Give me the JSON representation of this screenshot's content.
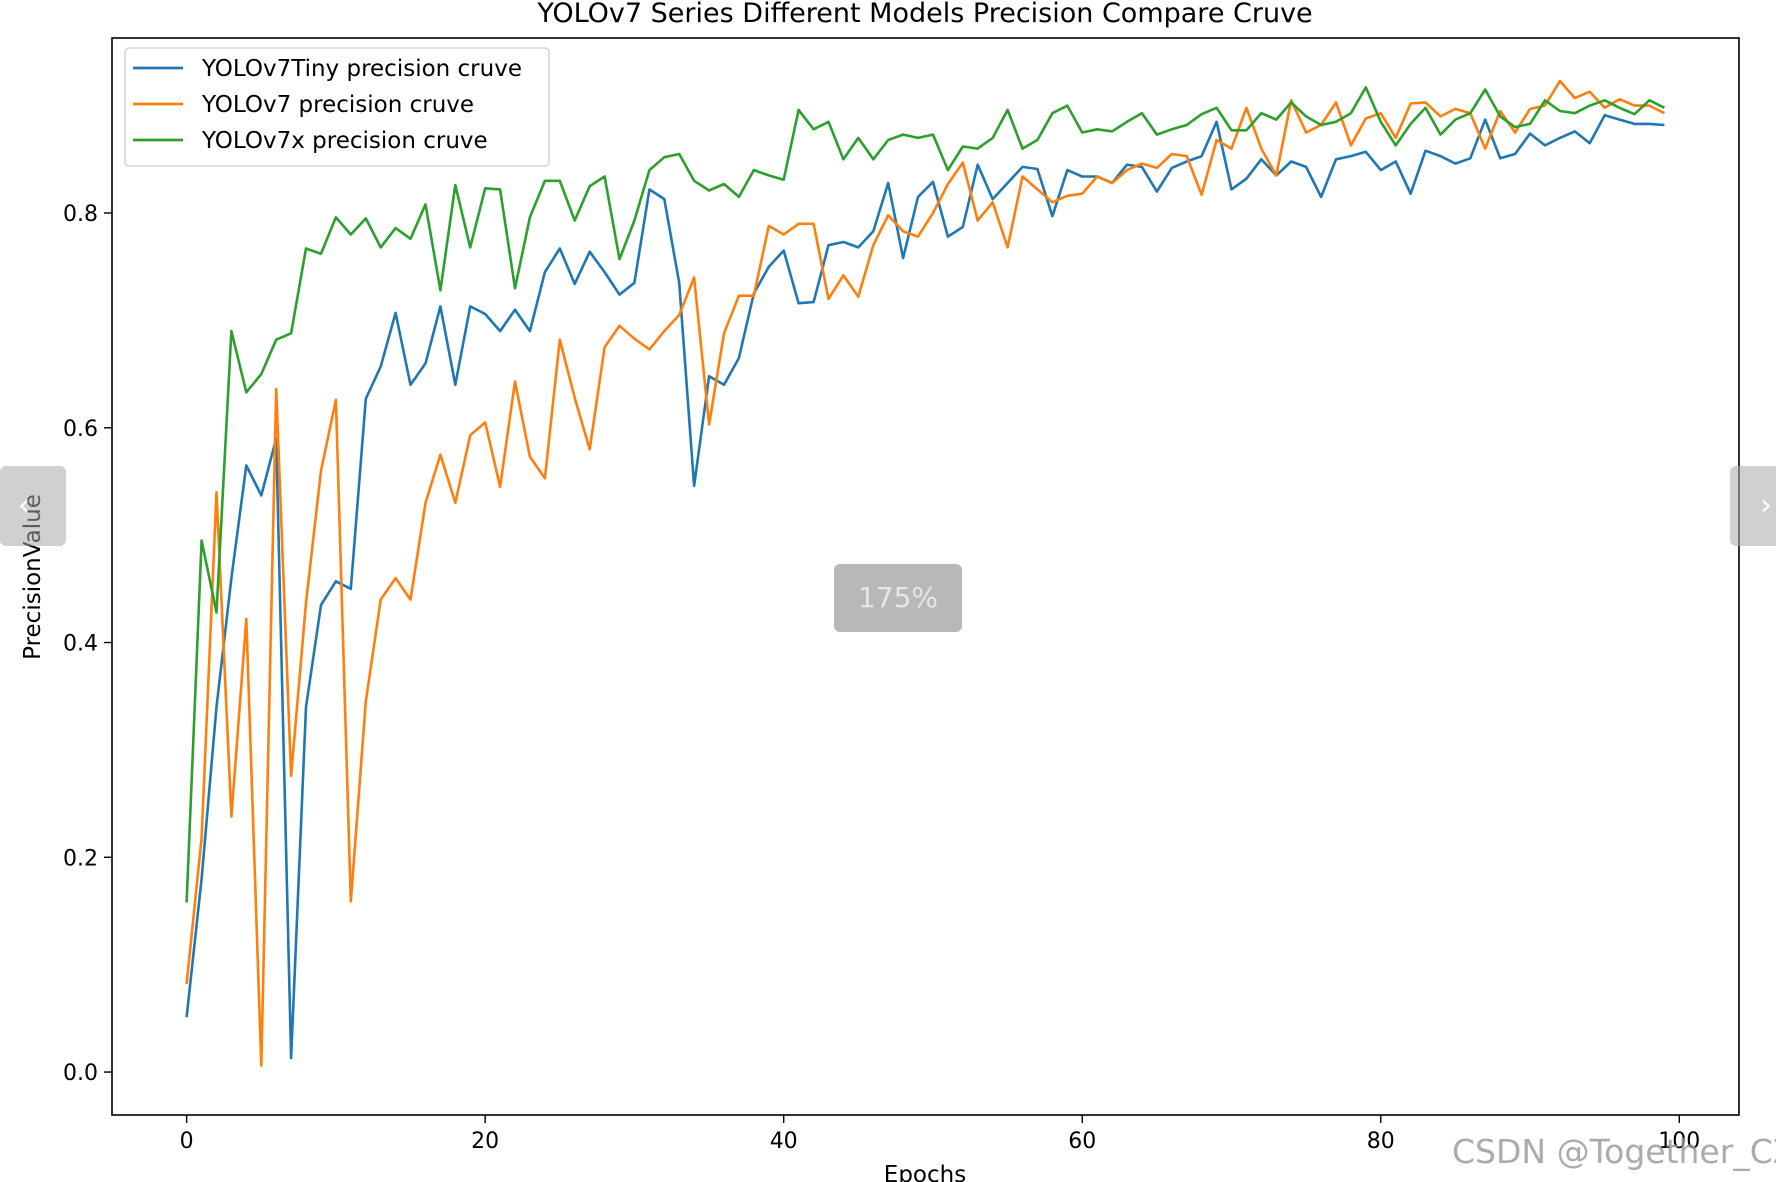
{
  "chart_data": {
    "type": "line",
    "title": "YOLOv7 Series Different Models Precision Compare Cruve",
    "xlabel": "Epochs",
    "ylabel": "PrecisionValue",
    "xlim": [
      -5,
      104
    ],
    "ylim": [
      -0.04,
      0.963
    ],
    "x_ticks": [
      0,
      20,
      40,
      60,
      80,
      100
    ],
    "y_ticks": [
      0.0,
      0.2,
      0.4,
      0.6,
      0.8
    ],
    "x_tick_labels": [
      "0",
      "20",
      "40",
      "60",
      "80",
      "100"
    ],
    "y_tick_labels": [
      "0.0",
      "0.2",
      "0.4",
      "0.6",
      "0.8"
    ],
    "grid": false,
    "legend_position": "top-left",
    "x": [
      0,
      1,
      2,
      3,
      4,
      5,
      6,
      7,
      8,
      9,
      10,
      11,
      12,
      13,
      14,
      15,
      16,
      17,
      18,
      19,
      20,
      21,
      22,
      23,
      24,
      25,
      26,
      27,
      28,
      29,
      30,
      31,
      32,
      33,
      34,
      35,
      36,
      37,
      38,
      39,
      40,
      41,
      42,
      43,
      44,
      45,
      46,
      47,
      48,
      49,
      50,
      51,
      52,
      53,
      54,
      55,
      56,
      57,
      58,
      59,
      60,
      61,
      62,
      63,
      64,
      65,
      66,
      67,
      68,
      69,
      70,
      71,
      72,
      73,
      74,
      75,
      76,
      77,
      78,
      79,
      80,
      81,
      82,
      83,
      84,
      85,
      86,
      87,
      88,
      89,
      90,
      91,
      92,
      93,
      94,
      95,
      96,
      97,
      98,
      99
    ],
    "series": [
      {
        "name": "YOLOv7Tiny precision cruve",
        "color": "#1f77b4",
        "values": [
          0.051,
          0.18,
          0.34,
          0.46,
          0.565,
          0.537,
          0.59,
          0.013,
          0.34,
          0.435,
          0.457,
          0.45,
          0.627,
          0.657,
          0.707,
          0.64,
          0.66,
          0.713,
          0.64,
          0.713,
          0.706,
          0.69,
          0.71,
          0.69,
          0.745,
          0.767,
          0.734,
          0.764,
          0.745,
          0.724,
          0.735,
          0.822,
          0.813,
          0.735,
          0.546,
          0.648,
          0.64,
          0.665,
          0.725,
          0.75,
          0.765,
          0.716,
          0.717,
          0.77,
          0.773,
          0.768,
          0.783,
          0.828,
          0.758,
          0.815,
          0.829,
          0.778,
          0.787,
          0.845,
          0.813,
          0.828,
          0.843,
          0.841,
          0.797,
          0.84,
          0.834,
          0.834,
          0.828,
          0.845,
          0.843,
          0.82,
          0.842,
          0.848,
          0.853,
          0.885,
          0.822,
          0.832,
          0.85,
          0.835,
          0.848,
          0.843,
          0.815,
          0.85,
          0.853,
          0.857,
          0.84,
          0.848,
          0.818,
          0.858,
          0.853,
          0.846,
          0.851,
          0.887,
          0.851,
          0.855,
          0.874,
          0.863,
          0.87,
          0.876,
          0.865,
          0.891,
          0.887,
          0.883,
          0.883,
          0.882
        ]
      },
      {
        "name": "YOLOv7 precision cruve",
        "color": "#ff7f0e",
        "values": [
          0.082,
          0.218,
          0.54,
          0.238,
          0.422,
          0.006,
          0.636,
          0.276,
          0.437,
          0.56,
          0.626,
          0.159,
          0.345,
          0.44,
          0.46,
          0.44,
          0.53,
          0.575,
          0.53,
          0.593,
          0.605,
          0.545,
          0.643,
          0.573,
          0.553,
          0.682,
          0.628,
          0.58,
          0.675,
          0.695,
          0.683,
          0.673,
          0.69,
          0.705,
          0.74,
          0.603,
          0.688,
          0.723,
          0.723,
          0.788,
          0.78,
          0.79,
          0.79,
          0.72,
          0.742,
          0.722,
          0.77,
          0.798,
          0.783,
          0.778,
          0.8,
          0.827,
          0.847,
          0.793,
          0.81,
          0.768,
          0.834,
          0.822,
          0.81,
          0.816,
          0.818,
          0.834,
          0.828,
          0.84,
          0.846,
          0.842,
          0.855,
          0.853,
          0.817,
          0.868,
          0.86,
          0.898,
          0.86,
          0.835,
          0.905,
          0.875,
          0.882,
          0.903,
          0.863,
          0.888,
          0.893,
          0.87,
          0.902,
          0.903,
          0.89,
          0.897,
          0.893,
          0.86,
          0.895,
          0.875,
          0.897,
          0.9,
          0.923,
          0.907,
          0.913,
          0.898,
          0.906,
          0.9,
          0.9,
          0.893
        ]
      },
      {
        "name": "YOLOv7x precision cruve",
        "color": "#2ca02c",
        "values": [
          0.158,
          0.495,
          0.428,
          0.69,
          0.633,
          0.65,
          0.682,
          0.688,
          0.767,
          0.762,
          0.796,
          0.78,
          0.795,
          0.768,
          0.786,
          0.776,
          0.808,
          0.728,
          0.826,
          0.768,
          0.823,
          0.822,
          0.73,
          0.796,
          0.83,
          0.83,
          0.793,
          0.825,
          0.834,
          0.757,
          0.793,
          0.84,
          0.852,
          0.855,
          0.83,
          0.821,
          0.827,
          0.815,
          0.84,
          0.835,
          0.831,
          0.896,
          0.878,
          0.885,
          0.85,
          0.87,
          0.85,
          0.868,
          0.873,
          0.87,
          0.873,
          0.84,
          0.862,
          0.86,
          0.87,
          0.896,
          0.86,
          0.868,
          0.893,
          0.9,
          0.875,
          0.878,
          0.876,
          0.885,
          0.893,
          0.873,
          0.878,
          0.882,
          0.892,
          0.898,
          0.877,
          0.877,
          0.893,
          0.887,
          0.903,
          0.89,
          0.882,
          0.885,
          0.893,
          0.917,
          0.885,
          0.863,
          0.883,
          0.898,
          0.873,
          0.887,
          0.893,
          0.915,
          0.89,
          0.88,
          0.883,
          0.905,
          0.895,
          0.893,
          0.9,
          0.905,
          0.898,
          0.892,
          0.905,
          0.898
        ]
      }
    ]
  },
  "viewer": {
    "prev_icon": "chevron-left-icon",
    "next_icon": "chevron-right-icon",
    "zoom_label": "175%"
  },
  "watermark": "CSDN @Together_CZ"
}
